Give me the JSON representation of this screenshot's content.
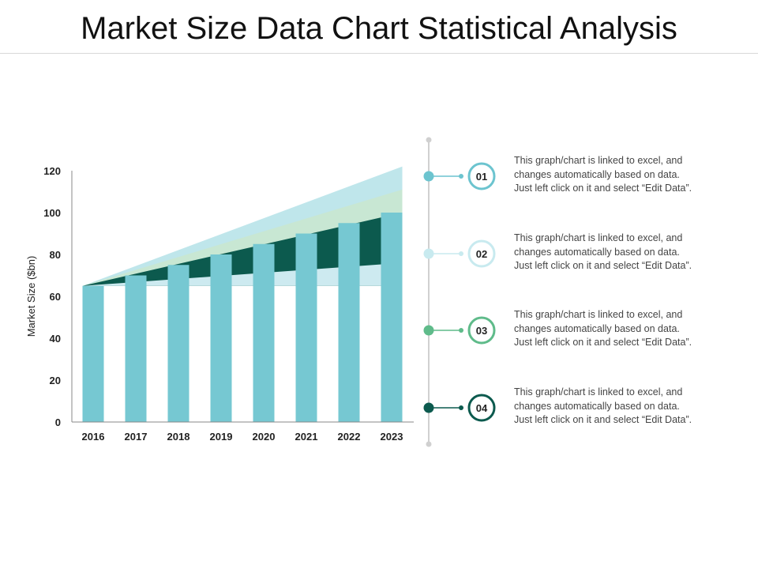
{
  "title": "Market Size Data Chart Statistical Analysis",
  "colors": {
    "bar": "#76c8d2",
    "band1": "#bfe6eb",
    "band2": "#c8e7d3",
    "band3": "#0c5a4e",
    "band4": "#cdeaf0",
    "timeline": "#d0d0d0",
    "item1": "#6cc4cf",
    "item2": "#c8eaef",
    "item3": "#5fbb8a",
    "item4": "#0c5a4e"
  },
  "chart_data": {
    "type": "bar",
    "title": "",
    "xlabel": "",
    "ylabel": "Market Size ($bn)",
    "categories": [
      "2016",
      "2017",
      "2018",
      "2019",
      "2020",
      "2021",
      "2022",
      "2023"
    ],
    "values": [
      65,
      70,
      75,
      80,
      85,
      90,
      95,
      100
    ],
    "ylim": [
      0,
      120
    ],
    "yticks": [
      0,
      20,
      40,
      60,
      80,
      100,
      120
    ],
    "bands": [
      {
        "name": "band-1",
        "start": 65,
        "end": 122
      },
      {
        "name": "band-2",
        "start": 65,
        "end": 111
      },
      {
        "name": "band-3",
        "start": 65,
        "end": 100
      },
      {
        "name": "band-4",
        "start": 65,
        "end": 76
      }
    ]
  },
  "items": [
    {
      "num": "01",
      "lines": [
        "This graph/chart is linked to excel, and",
        "changes automatically based on data.",
        "Just left click on it and select “Edit Data”."
      ]
    },
    {
      "num": "02",
      "lines": [
        "This graph/chart is linked to excel, and",
        "changes automatically based on data.",
        "Just left click on it and select “Edit Data”."
      ]
    },
    {
      "num": "03",
      "lines": [
        "This graph/chart is linked to excel, and",
        "changes automatically based on data.",
        "Just left click on it and select “Edit Data”."
      ]
    },
    {
      "num": "04",
      "lines": [
        "This graph/chart is linked to excel, and",
        "changes automatically based on data.",
        "Just left click on it and select “Edit Data”."
      ]
    }
  ]
}
